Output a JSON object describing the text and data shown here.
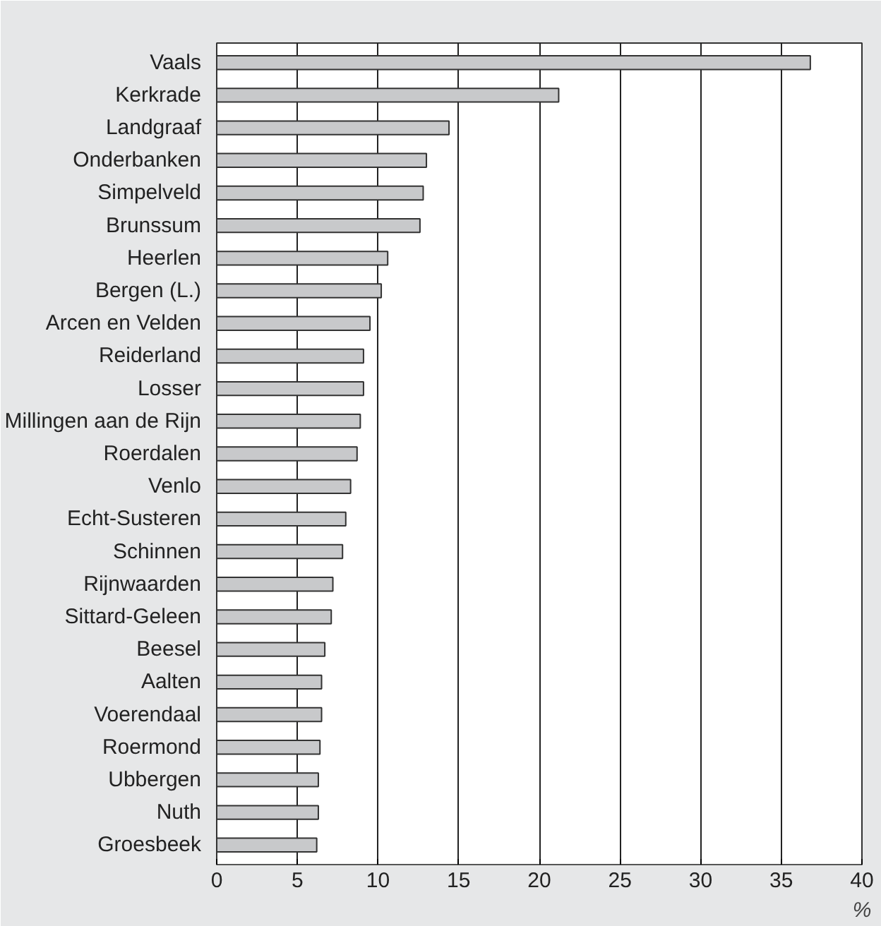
{
  "chart_data": {
    "type": "bar",
    "orientation": "horizontal",
    "xlabel": "%",
    "categories": [
      "Vaals",
      "Kerkrade",
      "Landgraaf",
      "Onderbanken",
      "Simpelveld",
      "Brunssum",
      "Heerlen",
      "Bergen (L.)",
      "Arcen en Velden",
      "Reiderland",
      "Losser",
      "Millingen aan de Rijn",
      "Roerdalen",
      "Venlo",
      "Echt-Susteren",
      "Schinnen",
      "Rijnwaarden",
      "Sittard-Geleen",
      "Beesel",
      "Aalten",
      "Voerendaal",
      "Roermond",
      "Ubbergen",
      "Nuth",
      "Groesbeek"
    ],
    "values": [
      36.8,
      21.2,
      14.4,
      13.0,
      12.8,
      12.6,
      10.6,
      10.2,
      9.5,
      9.1,
      9.1,
      8.9,
      8.7,
      8.3,
      8.0,
      7.8,
      7.2,
      7.1,
      6.7,
      6.5,
      6.5,
      6.4,
      6.3,
      6.3,
      6.2
    ],
    "color": "#c8c9cb",
    "xlim": [
      0,
      40
    ],
    "xticks": [
      0,
      5,
      10,
      15,
      20,
      25,
      30,
      35,
      40
    ],
    "grid": "x"
  }
}
